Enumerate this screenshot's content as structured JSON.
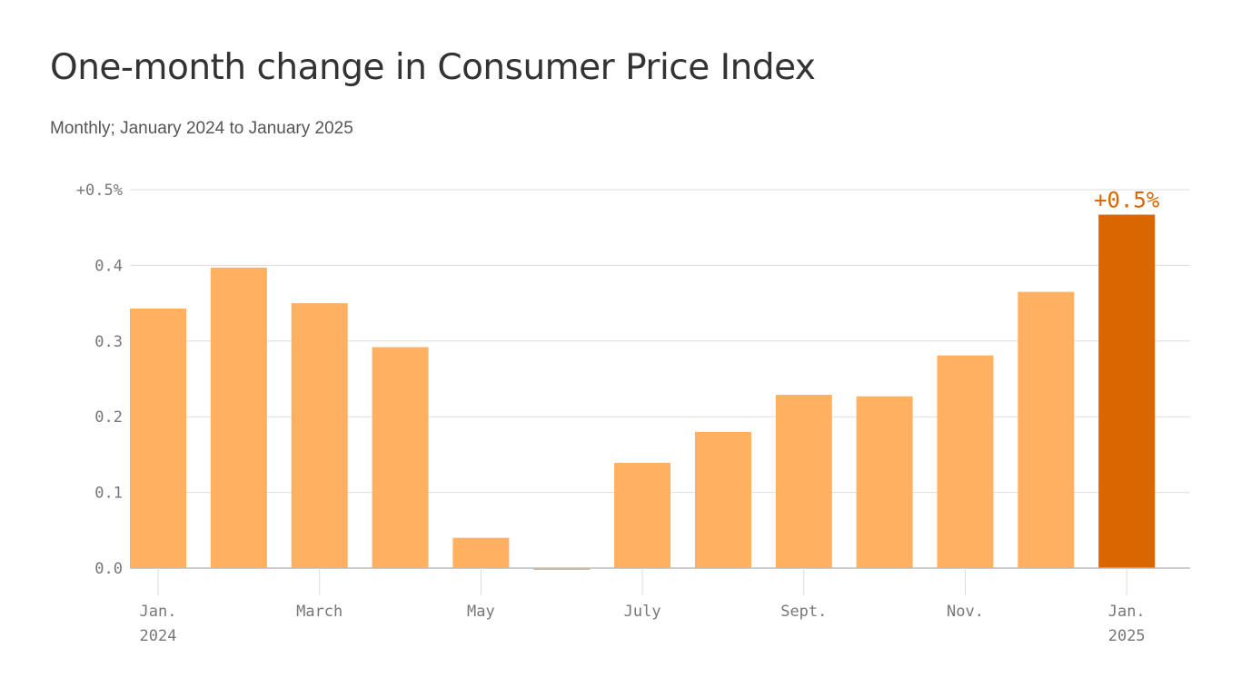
{
  "title": "One-month change in Consumer Price Index",
  "subtitle": "Monthly; January 2024 to January 2025",
  "colors": {
    "bar": "#ffb061",
    "highlight": "#d96600",
    "grid": "#dddddd",
    "axis": "#bbbbbb",
    "tick_text": "#777777"
  },
  "chart_data": {
    "type": "bar",
    "title": "One-month change in Consumer Price Index",
    "subtitle": "Monthly; January 2024 to January 2025",
    "xlabel": "",
    "ylabel": "",
    "ylim": [
      0,
      0.5
    ],
    "yticks": [
      {
        "value": 0.0,
        "label": "0.0"
      },
      {
        "value": 0.1,
        "label": "0.1"
      },
      {
        "value": 0.2,
        "label": "0.2"
      },
      {
        "value": 0.3,
        "label": "0.3"
      },
      {
        "value": 0.4,
        "label": "0.4"
      },
      {
        "value": 0.5,
        "label": "+0.5%"
      }
    ],
    "categories": [
      "Jan. 2024",
      "Feb. 2024",
      "March 2024",
      "April 2024",
      "May 2024",
      "June 2024",
      "July 2024",
      "Aug. 2024",
      "Sept. 2024",
      "Oct. 2024",
      "Nov. 2024",
      "Dec. 2024",
      "Jan. 2025"
    ],
    "values": [
      0.343,
      0.397,
      0.35,
      0.292,
      0.04,
      -0.002,
      0.139,
      0.18,
      0.229,
      0.227,
      0.281,
      0.365,
      0.467
    ],
    "highlight_index": 12,
    "xticks": [
      {
        "index": 0,
        "line1": "Jan.",
        "line2": "2024"
      },
      {
        "index": 2,
        "line1": "March",
        "line2": ""
      },
      {
        "index": 4,
        "line1": "May",
        "line2": ""
      },
      {
        "index": 6,
        "line1": "July",
        "line2": ""
      },
      {
        "index": 8,
        "line1": "Sept.",
        "line2": ""
      },
      {
        "index": 10,
        "line1": "Nov.",
        "line2": ""
      },
      {
        "index": 12,
        "line1": "Jan.",
        "line2": "2025"
      }
    ],
    "annotation": {
      "index": 12,
      "text": "+0.5%"
    }
  }
}
